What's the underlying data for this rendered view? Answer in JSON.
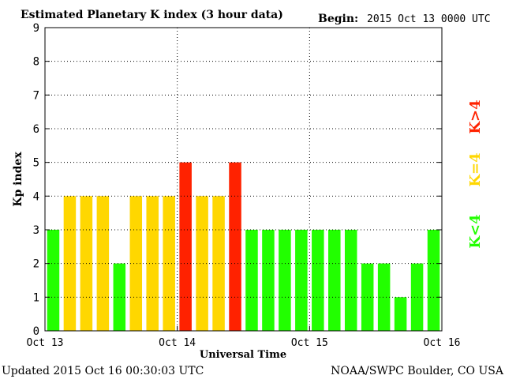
{
  "header": {
    "title": "Estimated Planetary K index (3 hour data)",
    "begin_label": "Begin:",
    "begin_value": "2015 Oct 13 0000 UTC"
  },
  "footer": {
    "updated": "Updated 2015 Oct 16 00:30:03 UTC",
    "source": "NOAA/SWPC Boulder, CO USA"
  },
  "legend": {
    "low": "K<4",
    "mid": "K=4",
    "high": "K>4"
  },
  "colors": {
    "low": "#22ff00",
    "mid": "#ffd700",
    "high": "#ff2200",
    "axis": "#000000",
    "grid": "#000000"
  },
  "chart_data": {
    "type": "bar",
    "title": "Estimated Planetary K index (3 hour data)",
    "xlabel": "Universal Time",
    "ylabel": "Kp index",
    "ylim": [
      0,
      9
    ],
    "yticks": [
      0,
      1,
      2,
      3,
      4,
      5,
      6,
      7,
      8,
      9
    ],
    "xticks": [
      "Oct 13",
      "Oct 14",
      "Oct 15",
      "Oct 16"
    ],
    "bars_per_day": 8,
    "grid": "dotted",
    "values": [
      3,
      4,
      4,
      4,
      2,
      4,
      4,
      4,
      5,
      4,
      4,
      5,
      3,
      3,
      3,
      3,
      3,
      3,
      3,
      2,
      2,
      1,
      2,
      3
    ]
  }
}
